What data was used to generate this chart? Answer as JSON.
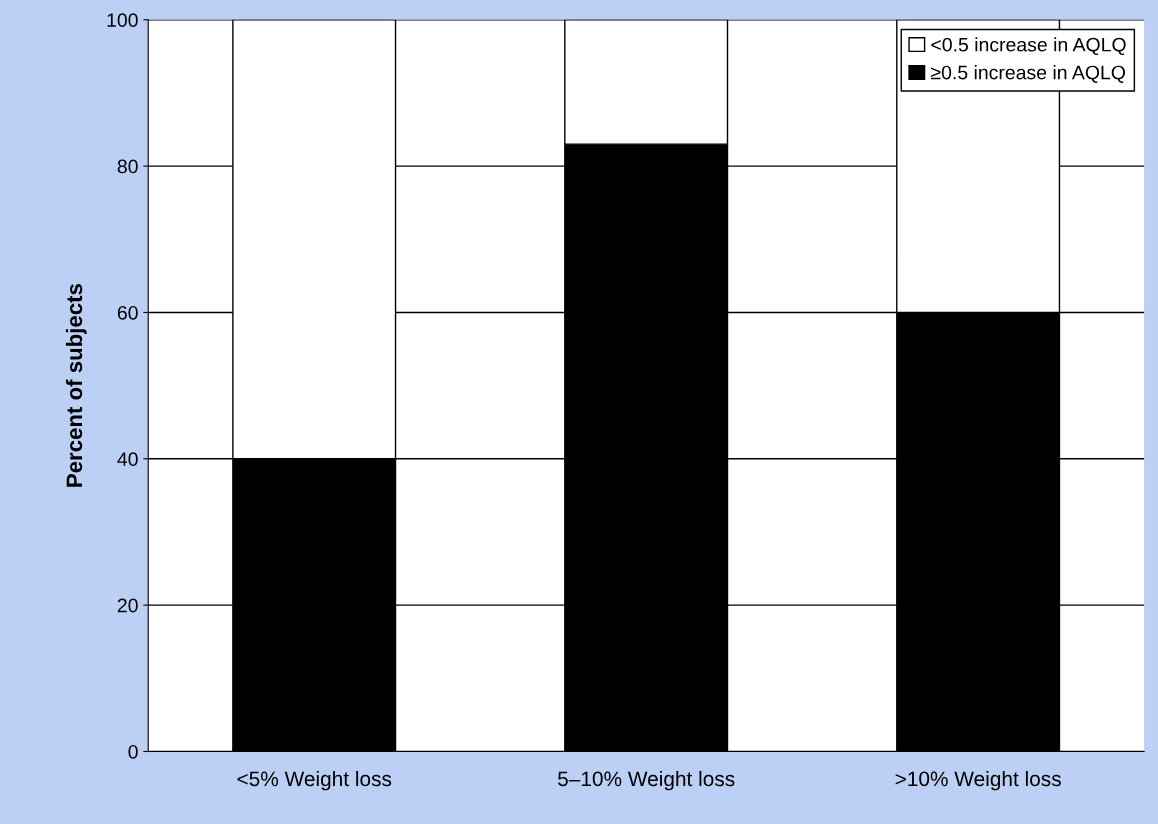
{
  "chart_data": {
    "type": "bar",
    "stacked": true,
    "ylabel": "Percent of subjects",
    "categories": [
      "<5% Weight loss",
      "5–10% Weight loss",
      ">10% Weight loss"
    ],
    "series": [
      {
        "name": "≥0.5 increase in AQLQ",
        "color": "#000000",
        "values": [
          40,
          83,
          60
        ]
      },
      {
        "name": "<0.5 increase in AQLQ",
        "color": "#ffffff",
        "values": [
          60,
          17,
          40
        ]
      }
    ],
    "ylim": [
      0,
      100
    ],
    "yticks": [
      0,
      20,
      40,
      60,
      80,
      100
    ],
    "grid": "y",
    "legend": "top right"
  }
}
